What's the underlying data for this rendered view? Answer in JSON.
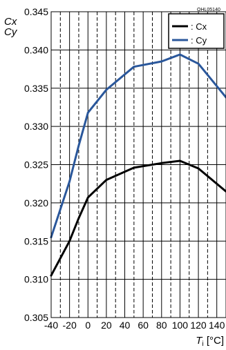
{
  "figure_code": "OHL05140",
  "colors": {
    "cx": "#000000",
    "cy": "#2a579b",
    "grid": "#000000"
  },
  "chart_data": {
    "type": "line",
    "ylabel_lines": [
      "Cx",
      "Cy"
    ],
    "xlabel": {
      "symbol": "T",
      "subscript": "i",
      "unit": "[°C]"
    },
    "xlim": [
      -40,
      150
    ],
    "ylim": [
      0.305,
      0.345
    ],
    "x_ticks": [
      "-40",
      "-20",
      "0",
      "20",
      "40",
      "60",
      "80",
      "100",
      "120",
      "140"
    ],
    "y_ticks": [
      "0.345",
      "0.340",
      "0.335",
      "0.330",
      "0.325",
      "0.320",
      "0.315",
      "0.310",
      "0.305"
    ],
    "x_minor_step": 10,
    "legend_position": "top-right",
    "series": [
      {
        "name": ": Cx",
        "key": "cx",
        "x": [
          -40,
          -20,
          -10,
          0,
          20,
          50,
          80,
          100,
          120,
          150
        ],
        "y": [
          0.3105,
          0.315,
          0.318,
          0.3207,
          0.323,
          0.3246,
          0.3252,
          0.3255,
          0.3245,
          0.3215
        ]
      },
      {
        "name": ": Cy",
        "key": "cy",
        "x": [
          -40,
          -20,
          -10,
          0,
          20,
          50,
          80,
          100,
          120,
          150
        ],
        "y": [
          0.3155,
          0.3228,
          0.3275,
          0.3318,
          0.3348,
          0.3378,
          0.3385,
          0.3394,
          0.3382,
          0.3338
        ]
      }
    ]
  }
}
